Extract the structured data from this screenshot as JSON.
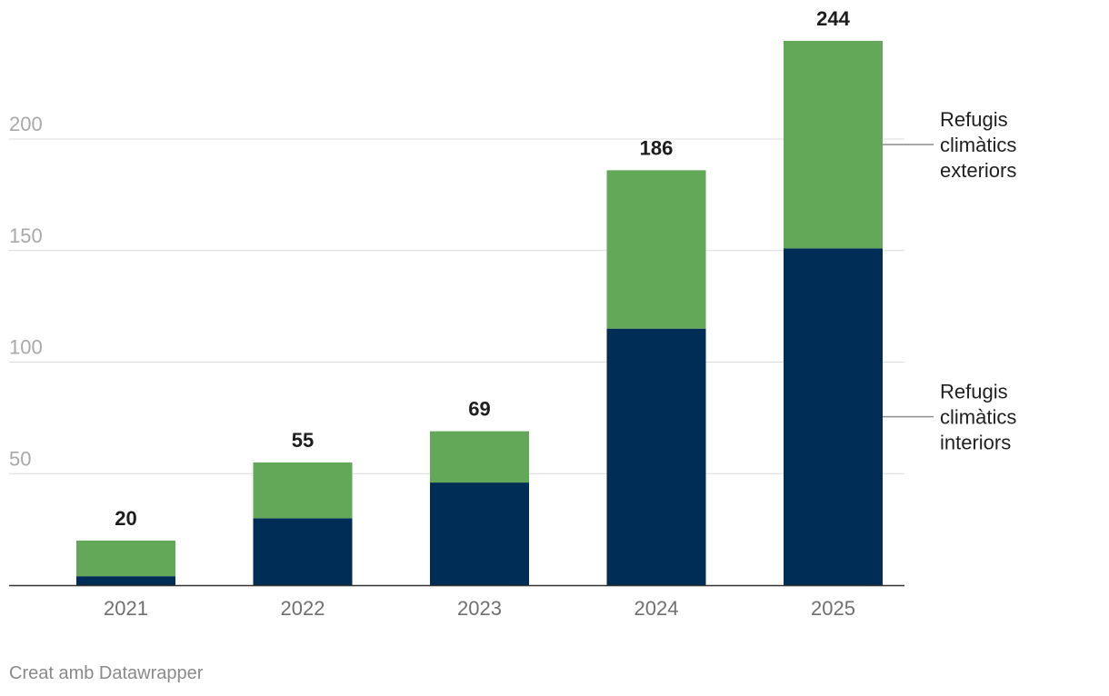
{
  "chart_data": {
    "type": "bar",
    "stacked": true,
    "categories": [
      "2021",
      "2022",
      "2023",
      "2024",
      "2025"
    ],
    "series": [
      {
        "name": "Refugis climàtics interiors",
        "color": "#002d55",
        "values": [
          4,
          30,
          46,
          115,
          151
        ]
      },
      {
        "name": "Refugis climàtics exteriors",
        "color": "#63a758",
        "values": [
          16,
          25,
          23,
          71,
          93
        ]
      }
    ],
    "totals": [
      "20",
      "55",
      "69",
      "186",
      "244"
    ],
    "yticks": [
      "50",
      "100",
      "150",
      "200"
    ],
    "ylim": [
      0,
      250
    ],
    "grid": true,
    "legend_placement": "right, inline labels"
  },
  "footer": "Creat amb Datawrapper"
}
